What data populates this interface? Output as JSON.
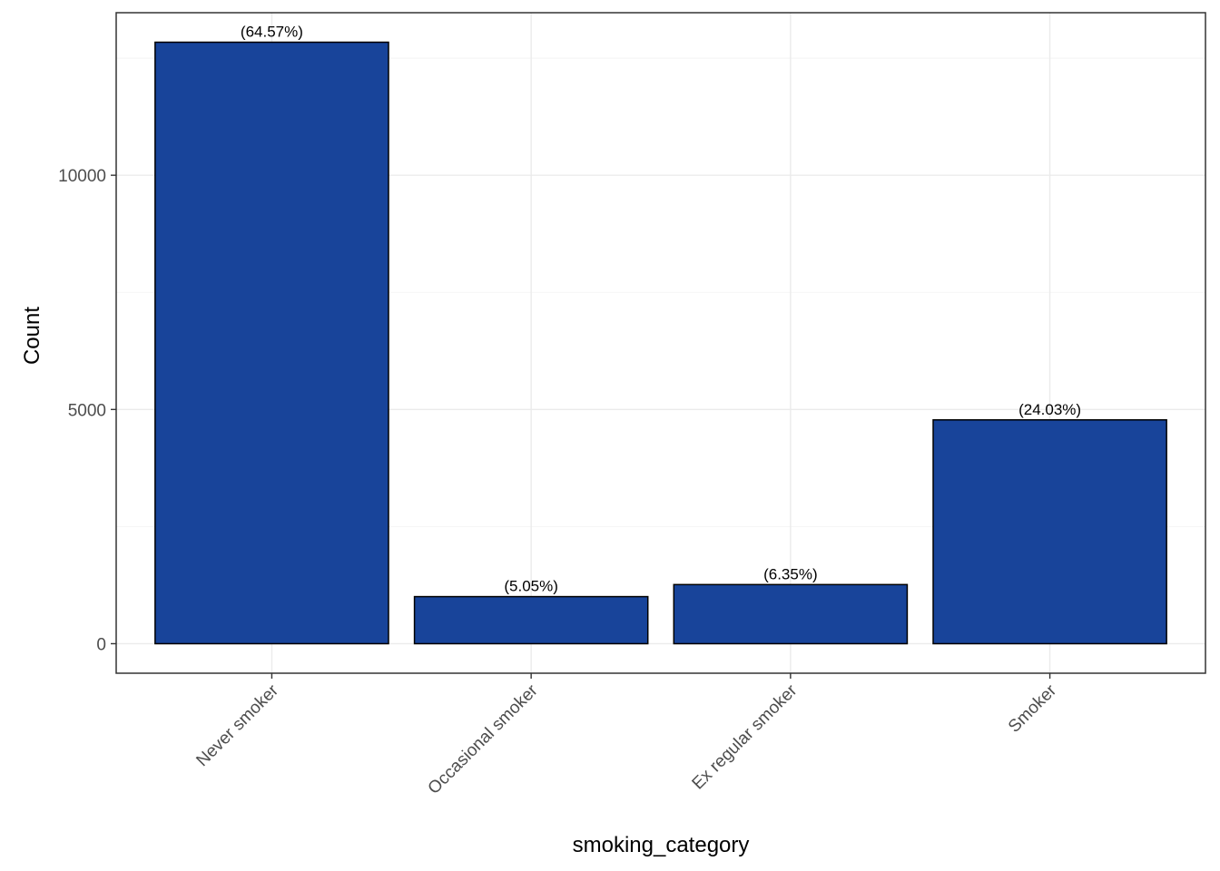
{
  "chart_data": {
    "type": "bar",
    "title": "",
    "xlabel": "smoking_category",
    "ylabel": "Count",
    "categories": [
      "Never smoker",
      "Occasional smoker",
      "Ex regular smoker",
      "Smoker"
    ],
    "values": [
      12840,
      1005,
      1262,
      4778
    ],
    "data_labels": [
      "(64.57%)",
      "(5.05%)",
      "(6.35%)",
      "(24.03%)"
    ],
    "y_ticks": [
      0,
      5000,
      10000
    ],
    "y_tick_labels": [
      "0",
      "5000",
      "10000"
    ],
    "ylim": [
      -630,
      13470
    ],
    "grid": true,
    "legend": "none",
    "bar_color": "#18449a",
    "bar_edge_color": "#000000"
  }
}
